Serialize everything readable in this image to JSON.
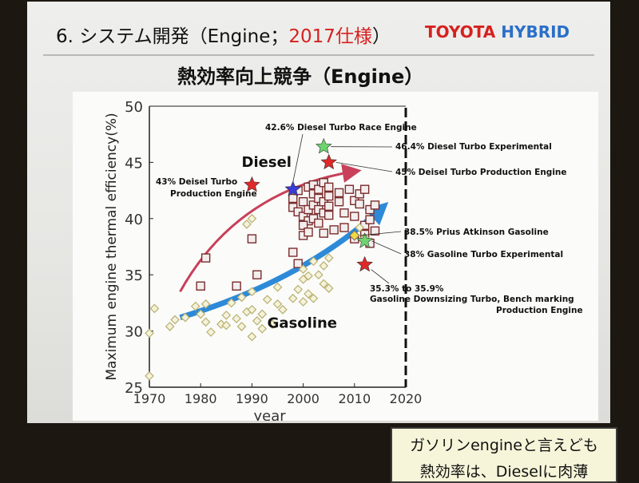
{
  "header": {
    "title_prefix": "6. システム開発（Engine；",
    "title_year": "2017仕様",
    "title_suffix": "）",
    "logo_toyota": "TOYOTA",
    "logo_hybrid": "HYBRID"
  },
  "subtitle": "熱効率向上競争（Engine）",
  "note": {
    "line1": "ガソリンengineと言えども",
    "line2": "熱効率は、Dieselに肉薄"
  },
  "colors": {
    "diesel_arrow": "#c8405a",
    "gasoline_arrow": "#2d8ad8",
    "star_red": "#e02828",
    "star_blue": "#3a3ad8",
    "star_green": "#6fd36f",
    "diesel_marker": "#7a2b2b",
    "gasoline_marker": "#b8b070"
  },
  "chart_data": {
    "type": "scatter",
    "xlabel": "year",
    "ylabel": "Maximum engine thermal efficiency(%)",
    "xlim": [
      1970,
      2020
    ],
    "ylim": [
      25,
      50
    ],
    "xticks": [
      "1970",
      "1980",
      "1990",
      "2000",
      "2010",
      "2020"
    ],
    "yticks": [
      "25",
      "30",
      "35",
      "40",
      "45",
      "50"
    ],
    "grid": false,
    "category_labels": {
      "diesel": "Diesel",
      "gasoline": "Gasoline"
    },
    "series": [
      {
        "name": "Diesel",
        "marker": "square",
        "points": [
          [
            1981,
            36.5
          ],
          [
            1980,
            34
          ],
          [
            1987,
            34
          ],
          [
            1990,
            38.2
          ],
          [
            1991,
            35
          ],
          [
            1998,
            37
          ],
          [
            1999,
            36
          ],
          [
            2000,
            38.5
          ],
          [
            1998,
            41
          ],
          [
            1998,
            41.8
          ],
          [
            1999,
            42.5
          ],
          [
            1999,
            40.6
          ],
          [
            2000,
            40.2
          ],
          [
            2000,
            41.5
          ],
          [
            2001,
            42.8
          ],
          [
            2001,
            40.8
          ],
          [
            2001,
            39.8
          ],
          [
            2002,
            41.2
          ],
          [
            2002,
            42.2
          ],
          [
            2002,
            43
          ],
          [
            2002,
            40
          ],
          [
            2003,
            41.8
          ],
          [
            2003,
            40.8
          ],
          [
            2003,
            42.6
          ],
          [
            2004,
            40.5
          ],
          [
            2004,
            41.5
          ],
          [
            2004,
            43.2
          ],
          [
            2005,
            42
          ],
          [
            2005,
            40.3
          ],
          [
            2005,
            41.1
          ],
          [
            2005,
            42.8
          ],
          [
            2006,
            39
          ],
          [
            2007,
            41.5
          ],
          [
            2007,
            42.3
          ],
          [
            2008,
            40.5
          ],
          [
            2009,
            42.6
          ],
          [
            2010,
            41.6
          ],
          [
            2010,
            40.2
          ],
          [
            2011,
            42.2
          ],
          [
            2011,
            41.3
          ],
          [
            2012,
            39.4
          ],
          [
            2012,
            38.6
          ],
          [
            2012,
            42.6
          ],
          [
            2013,
            40.8
          ],
          [
            2013,
            39.9
          ],
          [
            2014,
            41.2
          ],
          [
            2000,
            39.4
          ],
          [
            2001,
            38.8
          ],
          [
            2003,
            39.6
          ],
          [
            2004,
            38.7
          ],
          [
            2008,
            39.2
          ],
          [
            2010,
            38.2
          ],
          [
            2013,
            37.8
          ],
          [
            2014,
            38.9
          ]
        ]
      },
      {
        "name": "Gasoline",
        "marker": "diamond",
        "points": [
          [
            1970,
            26
          ],
          [
            1970,
            29.8
          ],
          [
            1971,
            32
          ],
          [
            1974,
            30.4
          ],
          [
            1975,
            31
          ],
          [
            1977,
            31.2
          ],
          [
            1979,
            32.2
          ],
          [
            1980,
            31.5
          ],
          [
            1981,
            32.4
          ],
          [
            1981,
            30.8
          ],
          [
            1982,
            29.9
          ],
          [
            1984,
            30.6
          ],
          [
            1985,
            31.4
          ],
          [
            1985,
            30.5
          ],
          [
            1986,
            32.5
          ],
          [
            1987,
            31.1
          ],
          [
            1988,
            33
          ],
          [
            1988,
            30.4
          ],
          [
            1989,
            31.7
          ],
          [
            1990,
            29.5
          ],
          [
            1990,
            31.9
          ],
          [
            1990,
            33.5
          ],
          [
            1991,
            30.9
          ],
          [
            1992,
            30.2
          ],
          [
            1992,
            31.5
          ],
          [
            1993,
            32.8
          ],
          [
            1994,
            30.6
          ],
          [
            1995,
            32.4
          ],
          [
            1995,
            33.9
          ],
          [
            1996,
            31.9
          ],
          [
            1998,
            32.9
          ],
          [
            1999,
            33.7
          ],
          [
            2000,
            32.6
          ],
          [
            2000,
            35.5
          ],
          [
            2000,
            34.6
          ],
          [
            2001,
            33.3
          ],
          [
            2001,
            34.9
          ],
          [
            2002,
            32.9
          ],
          [
            2002,
            36.2
          ],
          [
            2003,
            35
          ],
          [
            2004,
            34.2
          ],
          [
            2004,
            35.8
          ],
          [
            2005,
            33.8
          ],
          [
            2005,
            36.5
          ],
          [
            1989,
            39.5
          ],
          [
            1990,
            40
          ],
          [
            2011,
            39.2
          ],
          [
            2012,
            38.3
          ]
        ]
      }
    ],
    "highlights": [
      {
        "label": "43% Deisel Turbo Production Engine",
        "x": 1990,
        "y": 43,
        "color": "red"
      },
      {
        "label": "42.6% Diesel Turbo Race Engine",
        "x": 1998,
        "y": 42.6,
        "color": "blue"
      },
      {
        "label": "46.4% Diesel Turbo Experimental",
        "x": 2004,
        "y": 46.4,
        "color": "green"
      },
      {
        "label": "45% Deisel Turbo Production Engine",
        "x": 2005,
        "y": 45,
        "color": "red"
      },
      {
        "label": "38.5% Prius Atkinson Gasoline",
        "x": 2010,
        "y": 38.5,
        "color": "yellow"
      },
      {
        "label": "38% Gasoline Turbo Experimental",
        "x": 2012,
        "y": 38,
        "color": "green"
      },
      {
        "label": "35.3% to 35.9% Gasoline Downsizing Turbo, Bench marking Production Engine",
        "x": 2012,
        "y": 35.9,
        "color": "red"
      }
    ],
    "trend_arrows": [
      {
        "name": "Diesel",
        "from": [
          1976,
          33.5
        ],
        "to": [
          2010,
          44.2
        ]
      },
      {
        "name": "Gasoline",
        "from": [
          1976,
          31.2
        ],
        "to": [
          2015,
          40.8
        ]
      }
    ],
    "reference_line_x": 2020
  }
}
